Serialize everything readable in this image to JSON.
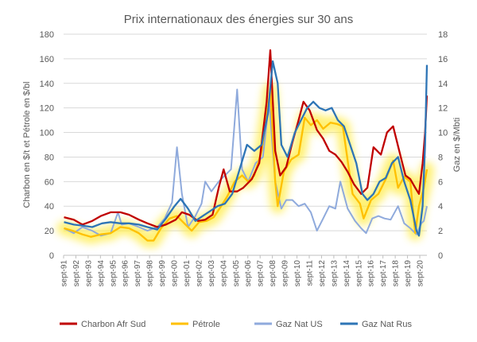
{
  "chart_data": {
    "type": "line",
    "title": "Prix internationaux des énergies sur 30 ans",
    "ylabel_left": "Charbon en $/t et Pétrole en $/bl",
    "ylabel_right": "Gaz en $/Mbti",
    "ylim_left": [
      0,
      180
    ],
    "ylim_right": [
      0,
      18
    ],
    "yticks_left": [
      "0",
      "20",
      "40",
      "60",
      "80",
      "100",
      "120",
      "140",
      "160",
      "180"
    ],
    "yticks_right": [
      "0",
      "2",
      "4",
      "6",
      "8",
      "10",
      "12",
      "14",
      "16",
      "18"
    ],
    "x_categories": [
      "sept-91",
      "sept-92",
      "sept-93",
      "sept-94",
      "sept-95",
      "sept-96",
      "sept-97",
      "sept-98",
      "sept-99",
      "sept-00",
      "sept-01",
      "sept-02",
      "sept-03",
      "sept-04",
      "sept-05",
      "sept-06",
      "sept-07",
      "sept-08",
      "sept-09",
      "sept-10",
      "sept-11",
      "sept-12",
      "sept-13",
      "sept-14",
      "sept-15",
      "sept-16",
      "sept-17",
      "sept-18",
      "sept-19",
      "sept-20"
    ],
    "x_start": 1991.67,
    "x_end": 2021.25,
    "legend_position": "bottom",
    "grid": true,
    "highlight": "yellow glow along Pétrole",
    "series": [
      {
        "name": "Charbon Afr Sud",
        "axis": "left",
        "color": "#c00000",
        "points": [
          [
            1991.7,
            31
          ],
          [
            1992.5,
            29
          ],
          [
            1993.2,
            25
          ],
          [
            1994.0,
            28
          ],
          [
            1994.7,
            32
          ],
          [
            1995.5,
            35
          ],
          [
            1996.3,
            35
          ],
          [
            1997.0,
            33
          ],
          [
            1997.8,
            29
          ],
          [
            1998.5,
            26
          ],
          [
            1999.3,
            23
          ],
          [
            2000.0,
            25
          ],
          [
            2000.8,
            29
          ],
          [
            2001.3,
            35
          ],
          [
            2001.9,
            33
          ],
          [
            2002.6,
            28
          ],
          [
            2003.2,
            29
          ],
          [
            2003.8,
            33
          ],
          [
            2004.3,
            55
          ],
          [
            2004.7,
            70
          ],
          [
            2005.2,
            52
          ],
          [
            2005.8,
            52
          ],
          [
            2006.3,
            55
          ],
          [
            2007.0,
            62
          ],
          [
            2007.6,
            75
          ],
          [
            2008.2,
            125
          ],
          [
            2008.5,
            167
          ],
          [
            2008.9,
            85
          ],
          [
            2009.3,
            65
          ],
          [
            2009.8,
            72
          ],
          [
            2010.3,
            92
          ],
          [
            2010.8,
            110
          ],
          [
            2011.2,
            125
          ],
          [
            2011.7,
            118
          ],
          [
            2012.3,
            102
          ],
          [
            2012.8,
            95
          ],
          [
            2013.3,
            85
          ],
          [
            2013.8,
            82
          ],
          [
            2014.3,
            76
          ],
          [
            2014.8,
            68
          ],
          [
            2015.3,
            58
          ],
          [
            2015.9,
            50
          ],
          [
            2016.4,
            55
          ],
          [
            2016.9,
            88
          ],
          [
            2017.5,
            82
          ],
          [
            2018.0,
            100
          ],
          [
            2018.5,
            105
          ],
          [
            2019.0,
            85
          ],
          [
            2019.5,
            65
          ],
          [
            2019.9,
            62
          ],
          [
            2020.3,
            55
          ],
          [
            2020.6,
            50
          ],
          [
            2020.9,
            75
          ],
          [
            2021.1,
            100
          ],
          [
            2021.25,
            130
          ]
        ]
      },
      {
        "name": "Pétrole",
        "axis": "left",
        "color": "#ffc000",
        "points": [
          [
            1991.7,
            22
          ],
          [
            1992.4,
            20
          ],
          [
            1993.2,
            17
          ],
          [
            1993.9,
            15
          ],
          [
            1994.7,
            17
          ],
          [
            1995.5,
            18
          ],
          [
            1996.3,
            23
          ],
          [
            1997.0,
            22
          ],
          [
            1997.8,
            18
          ],
          [
            1998.5,
            12
          ],
          [
            1999.0,
            12
          ],
          [
            1999.6,
            22
          ],
          [
            2000.3,
            30
          ],
          [
            2000.9,
            32
          ],
          [
            2001.6,
            25
          ],
          [
            2002.1,
            20
          ],
          [
            2002.7,
            27
          ],
          [
            2003.3,
            28
          ],
          [
            2003.9,
            31
          ],
          [
            2004.5,
            40
          ],
          [
            2005.0,
            48
          ],
          [
            2005.6,
            60
          ],
          [
            2006.2,
            65
          ],
          [
            2006.7,
            60
          ],
          [
            2007.2,
            65
          ],
          [
            2007.8,
            85
          ],
          [
            2008.5,
            135
          ],
          [
            2008.9,
            60
          ],
          [
            2009.1,
            40
          ],
          [
            2009.6,
            68
          ],
          [
            2010.2,
            78
          ],
          [
            2010.8,
            82
          ],
          [
            2011.3,
            112
          ],
          [
            2011.8,
            106
          ],
          [
            2012.3,
            110
          ],
          [
            2012.8,
            103
          ],
          [
            2013.4,
            108
          ],
          [
            2013.9,
            107
          ],
          [
            2014.4,
            105
          ],
          [
            2014.9,
            70
          ],
          [
            2015.2,
            50
          ],
          [
            2015.8,
            42
          ],
          [
            2016.1,
            30
          ],
          [
            2016.7,
            45
          ],
          [
            2017.3,
            50
          ],
          [
            2017.9,
            62
          ],
          [
            2018.5,
            77
          ],
          [
            2018.9,
            55
          ],
          [
            2019.4,
            64
          ],
          [
            2019.9,
            60
          ],
          [
            2020.3,
            18
          ],
          [
            2020.6,
            40
          ],
          [
            2021.0,
            55
          ],
          [
            2021.25,
            70
          ]
        ]
      },
      {
        "name": "Gaz Nat US",
        "axis": "right",
        "color": "#8faadc",
        "points": [
          [
            1991.7,
            2.2
          ],
          [
            1992.5,
            1.8
          ],
          [
            1993.2,
            2.3
          ],
          [
            1994.0,
            2.0
          ],
          [
            1994.7,
            1.6
          ],
          [
            1995.5,
            1.8
          ],
          [
            1996.1,
            3.5
          ],
          [
            1996.4,
            2.5
          ],
          [
            1997.0,
            2.6
          ],
          [
            1997.8,
            2.3
          ],
          [
            1998.5,
            2.0
          ],
          [
            1999.3,
            2.3
          ],
          [
            1999.9,
            3.0
          ],
          [
            2000.5,
            4.3
          ],
          [
            2000.9,
            8.8
          ],
          [
            2001.3,
            5.0
          ],
          [
            2001.8,
            2.3
          ],
          [
            2002.4,
            3.2
          ],
          [
            2002.9,
            4.2
          ],
          [
            2003.2,
            6.0
          ],
          [
            2003.7,
            5.2
          ],
          [
            2004.3,
            6.0
          ],
          [
            2004.8,
            6.5
          ],
          [
            2005.3,
            7.0
          ],
          [
            2005.8,
            13.5
          ],
          [
            2006.2,
            7.0
          ],
          [
            2006.7,
            6.0
          ],
          [
            2007.3,
            7.5
          ],
          [
            2007.9,
            8.0
          ],
          [
            2008.4,
            12.5
          ],
          [
            2008.9,
            6.0
          ],
          [
            2009.4,
            3.8
          ],
          [
            2009.8,
            4.5
          ],
          [
            2010.3,
            4.5
          ],
          [
            2010.8,
            4.0
          ],
          [
            2011.3,
            4.2
          ],
          [
            2011.8,
            3.5
          ],
          [
            2012.3,
            2.0
          ],
          [
            2012.8,
            3.0
          ],
          [
            2013.3,
            4.0
          ],
          [
            2013.8,
            3.8
          ],
          [
            2014.2,
            6.0
          ],
          [
            2014.8,
            3.8
          ],
          [
            2015.4,
            2.8
          ],
          [
            2015.9,
            2.2
          ],
          [
            2016.3,
            1.8
          ],
          [
            2016.8,
            3.0
          ],
          [
            2017.3,
            3.2
          ],
          [
            2017.8,
            3.0
          ],
          [
            2018.3,
            2.9
          ],
          [
            2018.9,
            4.0
          ],
          [
            2019.4,
            2.6
          ],
          [
            2019.9,
            2.2
          ],
          [
            2020.4,
            1.7
          ],
          [
            2020.8,
            2.6
          ],
          [
            2021.0,
            2.8
          ],
          [
            2021.25,
            4.0
          ]
        ]
      },
      {
        "name": "Gaz Nat Rus",
        "axis": "right",
        "color": "#2e75b6",
        "points": [
          [
            1991.7,
            2.7
          ],
          [
            1992.5,
            2.5
          ],
          [
            1993.3,
            2.4
          ],
          [
            1994.0,
            2.3
          ],
          [
            1994.8,
            2.6
          ],
          [
            1995.5,
            2.7
          ],
          [
            1996.3,
            2.6
          ],
          [
            1997.0,
            2.6
          ],
          [
            1997.8,
            2.5
          ],
          [
            1998.5,
            2.3
          ],
          [
            1999.3,
            2.1
          ],
          [
            2000.0,
            3.0
          ],
          [
            2000.7,
            4.0
          ],
          [
            2001.2,
            4.6
          ],
          [
            2001.8,
            3.8
          ],
          [
            2002.4,
            2.8
          ],
          [
            2003.0,
            3.2
          ],
          [
            2003.6,
            3.6
          ],
          [
            2004.2,
            4.0
          ],
          [
            2004.8,
            4.2
          ],
          [
            2005.4,
            5.0
          ],
          [
            2006.0,
            7.0
          ],
          [
            2006.6,
            9.0
          ],
          [
            2007.2,
            8.5
          ],
          [
            2007.8,
            9.0
          ],
          [
            2008.3,
            11.5
          ],
          [
            2008.7,
            15.8
          ],
          [
            2009.1,
            14.0
          ],
          [
            2009.4,
            9.0
          ],
          [
            2009.9,
            8.0
          ],
          [
            2010.5,
            10.0
          ],
          [
            2011.0,
            11.0
          ],
          [
            2011.5,
            12.0
          ],
          [
            2012.0,
            12.5
          ],
          [
            2012.5,
            12.0
          ],
          [
            2013.0,
            11.8
          ],
          [
            2013.5,
            12.0
          ],
          [
            2014.0,
            11.0
          ],
          [
            2014.5,
            10.5
          ],
          [
            2015.0,
            9.0
          ],
          [
            2015.5,
            7.5
          ],
          [
            2016.0,
            5.0
          ],
          [
            2016.4,
            4.5
          ],
          [
            2016.9,
            5.0
          ],
          [
            2017.4,
            6.0
          ],
          [
            2017.9,
            6.3
          ],
          [
            2018.4,
            7.5
          ],
          [
            2018.9,
            8.0
          ],
          [
            2019.4,
            6.0
          ],
          [
            2019.9,
            4.5
          ],
          [
            2020.4,
            2.0
          ],
          [
            2020.6,
            1.6
          ],
          [
            2020.9,
            4.0
          ],
          [
            2021.1,
            9.0
          ],
          [
            2021.25,
            15.5
          ]
        ]
      }
    ]
  }
}
